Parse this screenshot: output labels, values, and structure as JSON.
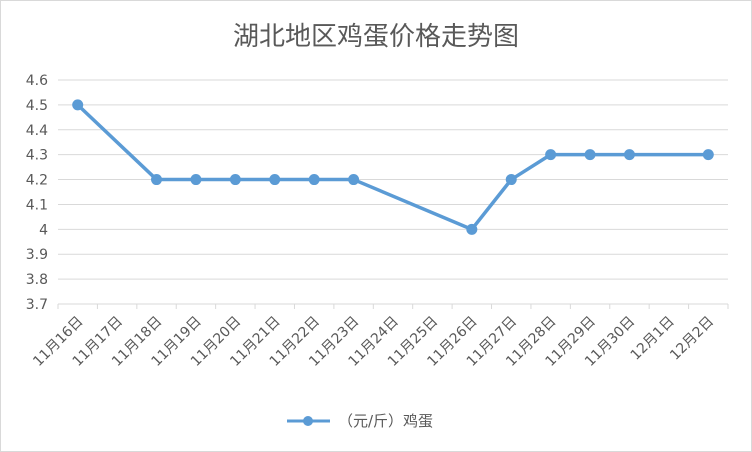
{
  "chart_data": {
    "type": "line",
    "title": "湖北地区鸡蛋价格走势图",
    "categories": [
      "11月16日",
      "11月17日",
      "11月18日",
      "11月19日",
      "11月20日",
      "11月21日",
      "11月22日",
      "11月23日",
      "11月24日",
      "11月25日",
      "11月26日",
      "11月27日",
      "11月28日",
      "11月29日",
      "11月30日",
      "12月1日",
      "12月2日"
    ],
    "series": [
      {
        "name": "（元/斤）鸡蛋",
        "values": [
          4.5,
          null,
          4.2,
          4.2,
          4.2,
          4.2,
          4.2,
          4.2,
          null,
          null,
          4.0,
          4.2,
          4.3,
          4.3,
          4.3,
          null,
          4.3
        ],
        "color": "#5b9bd5"
      }
    ],
    "ylim": [
      3.7,
      4.6
    ],
    "yticks": [
      "3.7",
      "3.8",
      "3.9",
      "4",
      "4.1",
      "4.2",
      "4.3",
      "4.4",
      "4.5",
      "4.6"
    ],
    "grid": true,
    "legend": "bottom"
  }
}
